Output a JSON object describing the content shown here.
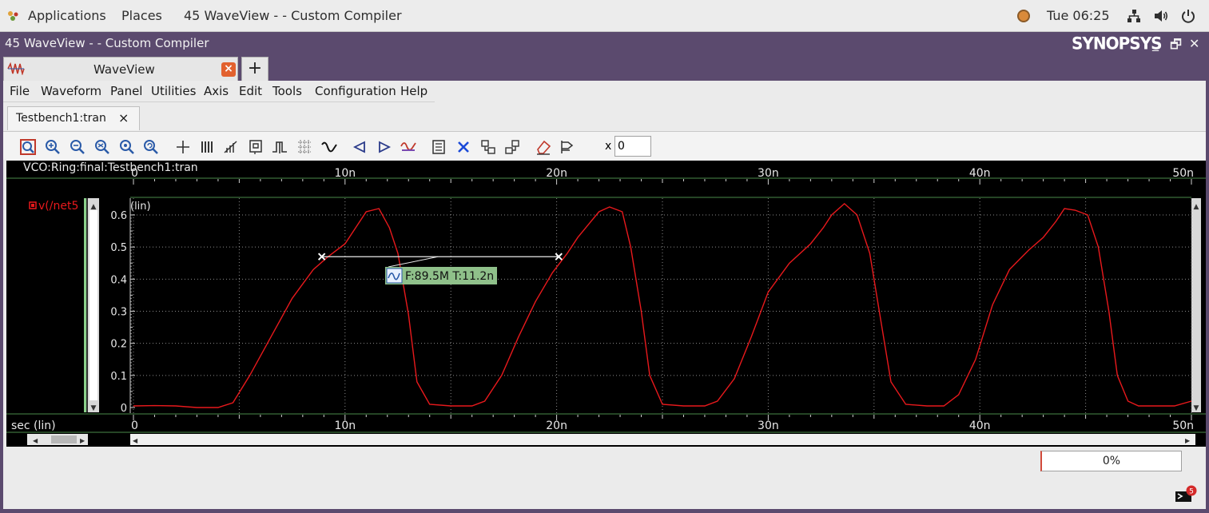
{
  "topbar": {
    "applications": "Applications",
    "places": "Places",
    "window_title": "45 WaveView -  - Custom Compiler",
    "clock": "Tue 06:25"
  },
  "window": {
    "title": "45 WaveView -  - Custom Compiler",
    "logo": "SYNOPSYS"
  },
  "app_tab": {
    "label": "WaveView",
    "close": "×",
    "add": "+"
  },
  "menu": [
    "File",
    "Waveform",
    "Panel",
    "Utilities",
    "Axis",
    "Edit",
    "Tools",
    "Configuration",
    "Help"
  ],
  "doc_tab": {
    "label": "Testbench1:tran",
    "close": "×"
  },
  "toolbar": {
    "x_label": "x",
    "x_value": "0"
  },
  "panel": {
    "title": "VCO:Ring:final:Testbench1:tran",
    "signal_name": "v(/net5",
    "y_scale_label": "(lin)",
    "x_axis_label": "sec (lin)",
    "measurement": "F:89.5M T:11.2n"
  },
  "colors": {
    "trace": "#e8191c",
    "background": "#000000",
    "grid": "#8a8a8a",
    "measure_bg": "#8fc08a"
  },
  "chart_data": {
    "type": "line",
    "xlim": [
      0,
      50
    ],
    "ylim": [
      0,
      0.65
    ],
    "x_unit": "n",
    "x_ticks": [
      "0",
      "10n",
      "20n",
      "30n",
      "40n",
      "50n"
    ],
    "y_ticks": [
      "0",
      "0.1",
      "0.2",
      "0.3",
      "0.4",
      "0.5",
      "0.6"
    ],
    "grid": true,
    "series": [
      {
        "name": "v(/net5",
        "x": [
          0,
          1,
          2,
          3,
          4,
          4.7,
          5.5,
          6.5,
          7.5,
          8.5,
          9.2,
          10,
          10.5,
          11,
          11.6,
          12.1,
          12.5,
          13,
          13.4,
          14,
          15,
          16,
          16.6,
          17.4,
          18.2,
          19,
          19.8,
          20.5,
          21,
          21.5,
          22,
          22.5,
          23.1,
          23.5,
          24,
          24.4,
          25,
          26,
          27,
          27.6,
          28.4,
          29.2,
          30,
          31,
          32,
          32.6,
          33,
          33.6,
          34.2,
          34.8,
          35.3,
          35.8,
          36.5,
          37.5,
          38.3,
          39,
          39.8,
          40.6,
          41.4,
          42.3,
          43,
          43.6,
          44,
          44.5,
          45.1,
          45.6,
          46.1,
          46.5,
          47,
          47.5,
          48.3,
          49.2,
          50
        ],
        "y": [
          0.005,
          0.006,
          0.005,
          0.0,
          0.0,
          0.015,
          0.1,
          0.22,
          0.34,
          0.43,
          0.47,
          0.51,
          0.56,
          0.61,
          0.62,
          0.56,
          0.48,
          0.29,
          0.08,
          0.01,
          0.005,
          0.005,
          0.02,
          0.1,
          0.22,
          0.33,
          0.42,
          0.48,
          0.53,
          0.57,
          0.61,
          0.625,
          0.61,
          0.5,
          0.3,
          0.1,
          0.01,
          0.005,
          0.005,
          0.02,
          0.09,
          0.22,
          0.36,
          0.45,
          0.51,
          0.56,
          0.6,
          0.635,
          0.6,
          0.48,
          0.28,
          0.08,
          0.01,
          0.005,
          0.005,
          0.04,
          0.15,
          0.32,
          0.43,
          0.49,
          0.53,
          0.58,
          0.62,
          0.615,
          0.6,
          0.5,
          0.3,
          0.1,
          0.02,
          0.005,
          0.005,
          0.005,
          0.02
        ]
      }
    ],
    "markers": [
      {
        "x": 8.9,
        "y": 0.47
      },
      {
        "x": 20.1,
        "y": 0.47
      }
    ]
  },
  "status": {
    "progress": "0%",
    "notifications": "5"
  }
}
